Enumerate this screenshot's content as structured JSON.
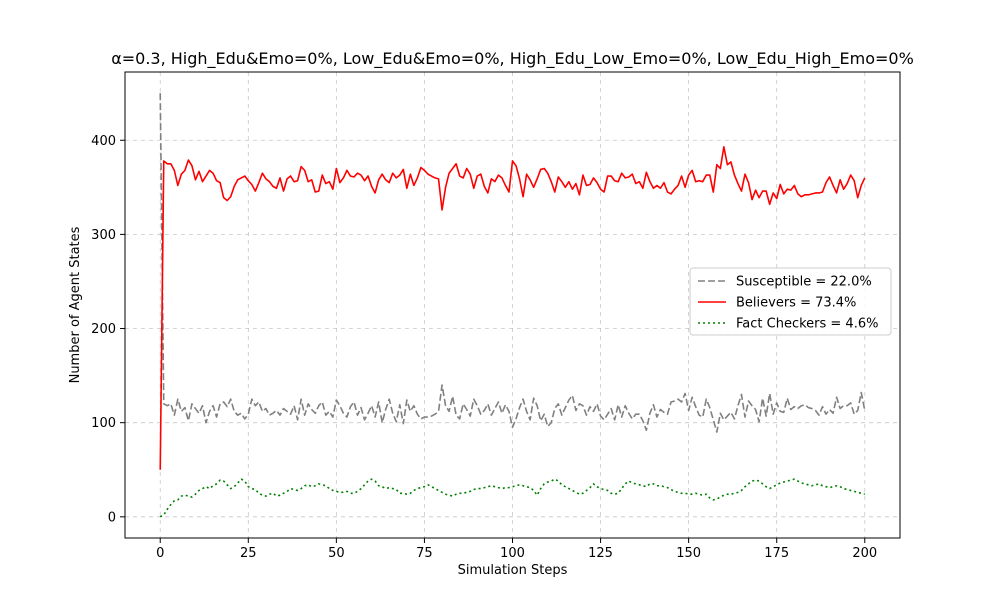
{
  "chart_data": {
    "type": "line",
    "title": "α=0.3, High_Edu&Emo=0%, Low_Edu&Emo=0%, High_Edu_Low_Emo=0%, Low_Edu_High_Emo=0%",
    "xlabel": "Simulation Steps",
    "ylabel": "Number of Agent States",
    "xlim": [
      -10,
      210
    ],
    "ylim": [
      -22.5,
      472.5
    ],
    "xticks": [
      0,
      25,
      50,
      75,
      100,
      125,
      150,
      175,
      200
    ],
    "yticks": [
      0,
      100,
      200,
      300,
      400
    ],
    "grid": true,
    "legend_position": "center-right",
    "series": [
      {
        "name": "Susceptible = 22.0%",
        "color": "#808080",
        "style": "dashed",
        "x_start": 0,
        "x_step": 1,
        "values": [
          450,
          120,
          118,
          120,
          108,
          125,
          112,
          116,
          102,
          120,
          115,
          110,
          118,
          100,
          112,
          118,
          106,
          120,
          122,
          117,
          125,
          112,
          108,
          110,
          104,
          109,
          125,
          118,
          122,
          112,
          115,
          108,
          110,
          113,
          108,
          115,
          112,
          109,
          118,
          103,
          125,
          108,
          120,
          114,
          110,
          118,
          122,
          108,
          112,
          106,
          124,
          118,
          110,
          106,
          117,
          122,
          108,
          116,
          103,
          110,
          118,
          106,
          122,
          100,
          114,
          125,
          110,
          101,
          119,
          99,
          124,
          112,
          118,
          109,
          104,
          106,
          106,
          107,
          109,
          112,
          140,
          118,
          112,
          128,
          108,
          104,
          120,
          114,
          107,
          125,
          118,
          109,
          113,
          120,
          108,
          115,
          122,
          110,
          119,
          112,
          95,
          104,
          116,
          125,
          112,
          103,
          126,
          118,
          102,
          109,
          96,
          100,
          115,
          120,
          108,
          116,
          124,
          129,
          113,
          120,
          118,
          108,
          117,
          112,
          120,
          107,
          103,
          109,
          115,
          103,
          119,
          106,
          118,
          110,
          104,
          109,
          109,
          102,
          92,
          110,
          119,
          106,
          114,
          111,
          109,
          122,
          123,
          125,
          122,
          131,
          113,
          127,
          117,
          108,
          106,
          125,
          116,
          103,
          90,
          110,
          103,
          107,
          111,
          104,
          118,
          130,
          106,
          123,
          118,
          114,
          101,
          126,
          107,
          131,
          109,
          121,
          112,
          111,
          126,
          114,
          117,
          115,
          118,
          119,
          116,
          115,
          113,
          108,
          117,
          109,
          114,
          110,
          127,
          115,
          118,
          118,
          121,
          109,
          113,
          132,
          113
        ]
      },
      {
        "name": "Believers = 73.4%",
        "color": "#ff0000",
        "style": "solid",
        "x_start": 0,
        "x_step": 1,
        "values": [
          50,
          378,
          375,
          375,
          368,
          352,
          364,
          368,
          379,
          373,
          358,
          367,
          356,
          362,
          368,
          365,
          357,
          355,
          339,
          336,
          340,
          351,
          358,
          360,
          362,
          357,
          353,
          346,
          355,
          365,
          359,
          356,
          351,
          349,
          360,
          346,
          359,
          362,
          356,
          357,
          372,
          368,
          356,
          358,
          345,
          346,
          363,
          354,
          356,
          348,
          370,
          355,
          360,
          368,
          362,
          361,
          365,
          363,
          357,
          362,
          351,
          344,
          358,
          364,
          358,
          355,
          365,
          360,
          363,
          369,
          349,
          364,
          352,
          360,
          371,
          368,
          364,
          362,
          360,
          359,
          326,
          350,
          365,
          370,
          375,
          362,
          360,
          370,
          364,
          349,
          362,
          364,
          351,
          344,
          359,
          356,
          363,
          360,
          352,
          345,
          378,
          373,
          359,
          340,
          364,
          358,
          350,
          359,
          369,
          370,
          365,
          356,
          345,
          361,
          356,
          350,
          356,
          348,
          354,
          342,
          363,
          352,
          353,
          360,
          355,
          348,
          345,
          362,
          362,
          357,
          356,
          365,
          360,
          361,
          364,
          354,
          356,
          349,
          366,
          356,
          349,
          352,
          349,
          355,
          345,
          343,
          348,
          352,
          362,
          350,
          363,
          368,
          356,
          357,
          356,
          363,
          363,
          345,
          374,
          370,
          393,
          374,
          377,
          363,
          354,
          346,
          364,
          355,
          337,
          347,
          339,
          346,
          346,
          332,
          344,
          338,
          353,
          343,
          348,
          347,
          352,
          343,
          340,
          342,
          342,
          343,
          344,
          344,
          345,
          355,
          361,
          352,
          344,
          358,
          348,
          354,
          363,
          357,
          339,
          352,
          360
        ]
      },
      {
        "name": "Fact Checkers = 4.6%",
        "color": "#008000",
        "style": "dotted",
        "x_start": 0,
        "x_step": 1,
        "values": [
          0,
          2,
          8,
          13,
          17,
          18,
          22,
          23,
          22,
          21,
          24,
          28,
          30,
          32,
          30,
          33,
          35,
          39,
          38,
          34,
          30,
          32,
          36,
          40,
          38,
          32,
          30,
          29,
          25,
          23,
          22,
          24,
          25,
          22,
          23,
          25,
          27,
          30,
          29,
          28,
          30,
          33,
          34,
          32,
          33,
          35,
          34,
          33,
          30,
          28,
          27,
          26,
          26,
          27,
          25,
          25,
          27,
          30,
          34,
          38,
          40,
          38,
          33,
          32,
          30,
          31,
          30,
          29,
          25,
          25,
          24,
          25,
          28,
          30,
          31,
          32,
          34,
          32,
          30,
          28,
          26,
          24,
          23,
          22,
          24,
          25,
          25,
          26,
          27,
          29,
          30,
          30,
          31,
          32,
          33,
          32,
          31,
          30,
          31,
          31,
          32,
          33,
          34,
          33,
          32,
          31,
          28,
          23,
          30,
          35,
          37,
          38,
          40,
          38,
          34,
          32,
          30,
          28,
          26,
          24,
          25,
          28,
          31,
          35,
          32,
          30,
          29,
          28,
          25,
          24,
          25,
          30,
          35,
          38,
          36,
          35,
          34,
          33,
          32,
          35,
          35,
          33,
          33,
          32,
          31,
          29,
          27,
          26,
          25,
          25,
          24,
          24,
          25,
          24,
          23,
          24,
          20,
          18,
          19,
          21,
          23,
          24,
          24,
          25,
          26,
          28,
          32,
          35,
          38,
          39,
          38,
          35,
          32,
          30,
          32,
          34,
          36,
          37,
          38,
          39,
          40,
          38,
          36,
          35,
          34,
          33,
          34,
          35,
          33,
          32,
          31,
          32,
          33,
          32,
          30,
          29,
          28,
          27,
          26,
          25,
          24
        ]
      }
    ]
  }
}
